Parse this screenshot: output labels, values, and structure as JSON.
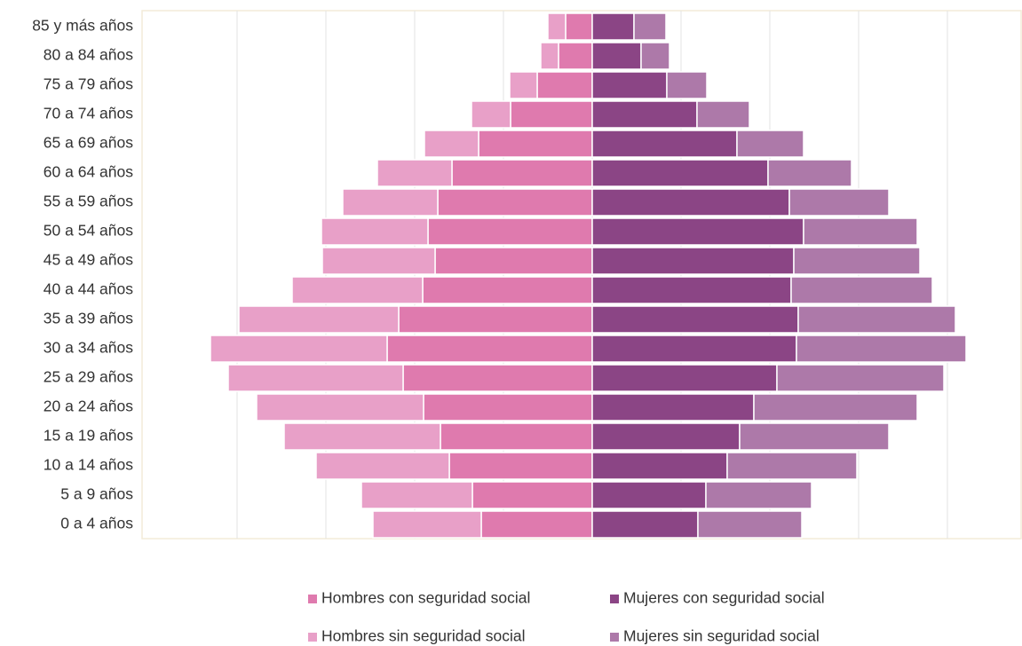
{
  "chart_data": {
    "type": "pyramid",
    "categories": [
      "0 a 4 años",
      "5 a 9 años",
      "10 a 14 años",
      "15 a 19 años",
      "20 a 24 años",
      "25 a 29 años",
      "30 a 34 años",
      "35 a 39 años",
      "40 a 44 años",
      "45 a 49 años",
      "50 a 54 años",
      "55 a 59 años",
      "60 a 64 años",
      "65 a 69 años",
      "70 a 74 años",
      "75 a 79 años",
      "80 a 84 años",
      "85 y más años"
    ],
    "series": [
      {
        "name": "Hombres con seguridad social",
        "color": "#df7aae",
        "side": "left",
        "values": [
          1.25,
          1.35,
          1.61,
          1.71,
          1.9,
          2.13,
          2.31,
          2.18,
          1.91,
          1.77,
          1.85,
          1.74,
          1.58,
          1.28,
          0.92,
          0.62,
          0.38,
          0.3
        ]
      },
      {
        "name": "Mujeres con seguridad social",
        "color": "#8b4585",
        "side": "right",
        "values": [
          1.19,
          1.28,
          1.52,
          1.66,
          1.82,
          2.08,
          2.3,
          2.32,
          2.24,
          2.27,
          2.38,
          2.22,
          1.98,
          1.63,
          1.18,
          0.84,
          0.55,
          0.47
        ]
      },
      {
        "name": "Hombres sin seguridad social",
        "color": "#e8a0c8",
        "side": "left",
        "values": [
          1.22,
          1.25,
          1.5,
          1.76,
          1.88,
          1.97,
          1.99,
          1.8,
          1.47,
          1.27,
          1.2,
          1.07,
          0.84,
          0.61,
          0.44,
          0.31,
          0.2,
          0.2
        ]
      },
      {
        "name": "Mujeres sin seguridad social",
        "color": "#ad79a9",
        "side": "right",
        "values": [
          1.17,
          1.19,
          1.46,
          1.68,
          1.84,
          1.88,
          1.91,
          1.77,
          1.59,
          1.42,
          1.28,
          1.12,
          0.94,
          0.75,
          0.59,
          0.45,
          0.32,
          0.36
        ]
      }
    ],
    "xlim": [
      -5.07,
      4.84
    ],
    "xticks": [
      -4,
      -3,
      -2,
      -1,
      0,
      1,
      2,
      3,
      4
    ],
    "grid": true
  }
}
